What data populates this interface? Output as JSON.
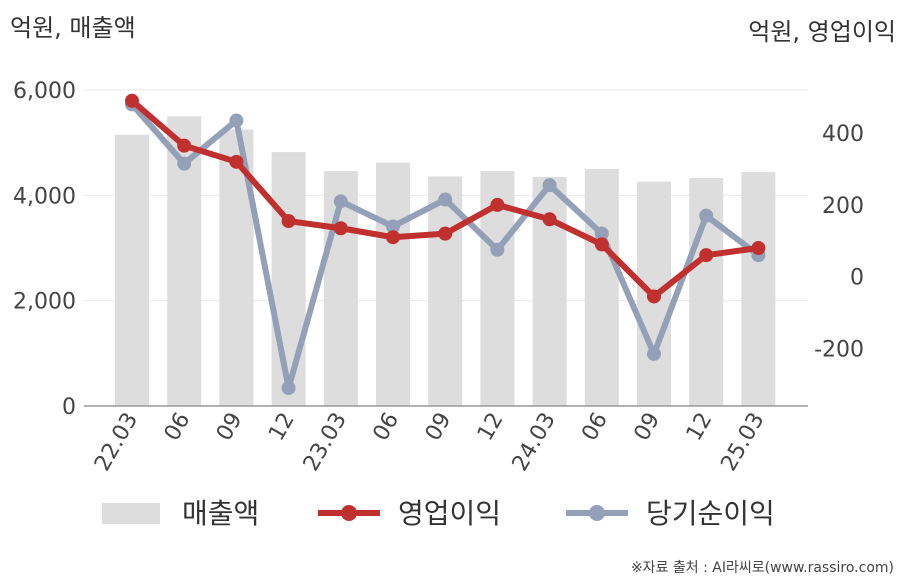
{
  "chart_data": {
    "type": "bar+line",
    "left_unit": "억원, 매출액",
    "right_unit": "억원, 영업이익",
    "categories": [
      "22.03",
      "06",
      "09",
      "12",
      "23.03",
      "06",
      "09",
      "12",
      "24.03",
      "06",
      "09",
      "12",
      "25.03"
    ],
    "y_left": {
      "lim": [
        0,
        6000
      ],
      "ticks": [
        0,
        2000,
        4000,
        6000
      ],
      "tick_labels": [
        "0",
        "2,000",
        "4,000",
        "6,000"
      ]
    },
    "y_right": {
      "lim": [
        -360,
        520
      ],
      "ticks": [
        -200,
        0,
        200,
        400
      ],
      "tick_labels": [
        "-200",
        "0",
        "200",
        "400"
      ]
    },
    "grid": true,
    "legend_position": "bottom",
    "series": [
      {
        "name": "매출액",
        "kind": "bar",
        "axis": "left",
        "color": "#dddddd",
        "values": [
          5150,
          5500,
          5250,
          4820,
          4460,
          4620,
          4360,
          4460,
          4350,
          4500,
          4260,
          4330,
          4440
        ]
      },
      {
        "name": "영업이익",
        "kind": "line",
        "axis": "right",
        "color": "#c0302f",
        "values": [
          490,
          365,
          320,
          155,
          135,
          110,
          120,
          200,
          160,
          90,
          -55,
          60,
          80
        ]
      },
      {
        "name": "당기순이익",
        "kind": "line",
        "axis": "right",
        "color": "#93a0b8",
        "values": [
          480,
          315,
          435,
          -310,
          210,
          140,
          215,
          75,
          255,
          120,
          -215,
          170,
          60
        ]
      }
    ],
    "source": "※자료 출처 : AI라씨로(www.rassiro.com)"
  }
}
